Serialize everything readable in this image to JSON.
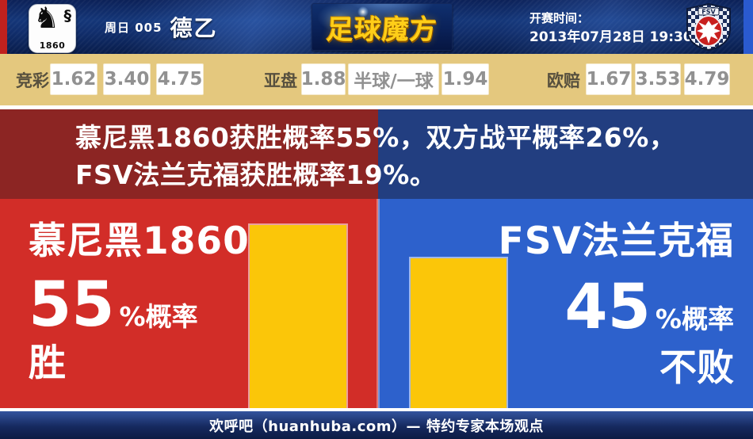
{
  "header": {
    "match_day": "周日 005",
    "league": "德乙",
    "brand": "足球魔方",
    "kickoff_label": "开赛时间：",
    "kickoff_time": "2013年07月28日 19:30",
    "home_badge_year": "1860",
    "away_badge_text": "FSV"
  },
  "odds": {
    "jingcai_label": "竞彩",
    "jingcai": [
      "1.62",
      "3.40",
      "4.75"
    ],
    "yapan_label": "亚盘",
    "yapan_home": "1.88",
    "yapan_handicap": "半球/一球",
    "yapan_away": "1.94",
    "oupei_label": "欧赔",
    "oupei": [
      "1.67",
      "3.53",
      "4.79"
    ]
  },
  "summary": "慕尼黑1860获胜概率55%，双方战平概率26%，FSV法兰克福获胜概率19%。",
  "home": {
    "team": "慕尼黑1860",
    "probability": "55",
    "prob_suffix": "%概率",
    "outcome": "胜"
  },
  "away": {
    "team": "FSV法兰克福",
    "probability": "45",
    "prob_suffix": "%概率",
    "outcome": "不败"
  },
  "footer": "欢呼吧（huanhuba.com）— 特约专家本场观点",
  "colors": {
    "home_bright": "#d22d28",
    "away_bright": "#2d61cc",
    "home_dark": "#8c2523",
    "away_dark": "#223e80",
    "bar_yellow": "#fbc609",
    "odds_bg": "#e4c87e",
    "brand_gold": "#ffce18"
  },
  "chart_data": {
    "type": "bar",
    "categories": [
      "慕尼黑1860",
      "FSV法兰克福"
    ],
    "values": [
      55,
      45
    ],
    "value_unit": "%",
    "bar_labels": [
      "55%概率 胜",
      "45%概率 不败"
    ],
    "title": "慕尼黑1860获胜概率55%，双方战平概率26%，FSV法兰克福获胜概率19%。",
    "home_win_probability": 55,
    "draw_probability": 26,
    "away_win_probability": 19,
    "bar_color": "#fbc609",
    "ylim": [
      0,
      62
    ],
    "legend": "off",
    "grid": "off"
  }
}
